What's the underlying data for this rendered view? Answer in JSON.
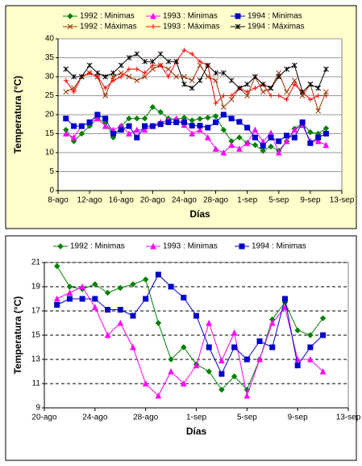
{
  "chart_data": [
    {
      "type": "line",
      "x_label": "Días",
      "y_label": "Temperatura (°C)",
      "x": [
        9,
        10,
        11,
        12,
        13,
        14,
        15,
        16,
        17,
        18,
        19,
        20,
        21,
        22,
        23,
        24,
        25,
        26,
        27,
        28,
        29,
        30,
        31,
        32,
        33,
        34,
        35,
        36,
        37,
        38,
        39,
        40,
        41,
        42
      ],
      "xlim": [
        8,
        44
      ],
      "xticks": [
        {
          "value": 8,
          "label": "8-ago"
        },
        {
          "value": 12,
          "label": "12-ago"
        },
        {
          "value": 16,
          "label": "16-ago"
        },
        {
          "value": 20,
          "label": "20-ago"
        },
        {
          "value": 24,
          "label": "24-ago"
        },
        {
          "value": 28,
          "label": "28-ago"
        },
        {
          "value": 32,
          "label": "1-sep"
        },
        {
          "value": 36,
          "label": "5-sep"
        },
        {
          "value": 40,
          "label": "9-sep"
        },
        {
          "value": 44,
          "label": "13-sep"
        }
      ],
      "ylim": [
        0,
        40
      ],
      "yticks": [
        0,
        5,
        10,
        15,
        20,
        25,
        30,
        35,
        40
      ],
      "grid": "solid",
      "background": "#ffffcc",
      "series": [
        {
          "name": "1992 : Minimas",
          "color": "#008000",
          "marker": "diamond",
          "values": [
            16,
            13,
            15,
            17,
            19,
            18,
            14,
            17,
            19,
            19,
            19,
            22,
            20.7,
            19,
            18.8,
            19.2,
            18.5,
            18.9,
            19.2,
            19.6,
            16,
            13,
            14,
            12.6,
            12,
            10.5,
            11.6,
            10.5,
            13,
            16.3,
            17.7,
            15.4,
            15,
            16.4
          ]
        },
        {
          "name": "1993 : Minimas",
          "color": "#ff00ff",
          "marker": "triangle",
          "values": [
            15,
            14,
            17,
            18,
            19,
            17,
            16,
            17,
            15,
            16,
            16,
            17,
            18,
            18.5,
            19,
            17.3,
            15,
            16,
            14,
            11,
            10,
            12,
            11,
            12.5,
            16,
            12.9,
            15.2,
            10,
            13,
            16,
            17.3,
            13,
            13,
            12
          ]
        },
        {
          "name": "1994 : Minimas",
          "color": "#0000cc",
          "marker": "square",
          "values": [
            19,
            17,
            17,
            18,
            20,
            19,
            15,
            16,
            17,
            14,
            17,
            17,
            17.5,
            18,
            18,
            18,
            17.1,
            17.1,
            16.6,
            18,
            20,
            19,
            18.1,
            16.6,
            14,
            11.8,
            14,
            13,
            14.5,
            14,
            18,
            12.5,
            14,
            15
          ]
        },
        {
          "name": "1992 : Máximas",
          "color": "#993300",
          "marker": "x",
          "values": [
            26,
            27,
            30,
            31,
            30,
            25,
            30,
            31,
            30,
            29,
            30,
            32,
            33,
            32,
            30,
            30,
            29,
            33,
            30,
            29,
            22,
            24,
            27,
            25,
            30,
            26,
            27,
            31,
            26,
            29,
            25,
            28,
            21,
            26
          ]
        },
        {
          "name": "1993 : Máximas",
          "color": "#ff0000",
          "marker": "plus",
          "values": [
            29,
            26,
            30,
            31,
            30,
            27,
            29,
            30,
            32,
            32,
            31,
            33,
            33,
            30,
            34,
            37,
            36,
            34,
            33,
            23,
            25,
            25,
            27,
            26,
            27,
            28,
            25,
            25,
            24,
            28,
            26,
            24,
            25,
            25
          ]
        },
        {
          "name": "1994 : Máximas",
          "color": "#000000",
          "marker": "star",
          "values": [
            32,
            30,
            30,
            33,
            31,
            30,
            31,
            33,
            35,
            36,
            34,
            34,
            36,
            34,
            34,
            28,
            27,
            29,
            33,
            31,
            31,
            29,
            27,
            28,
            30,
            28,
            27,
            30,
            32,
            33,
            26,
            28,
            27,
            32
          ]
        }
      ]
    },
    {
      "type": "line",
      "x_label": "Días",
      "y_label": "Temperatura (°C)",
      "x": [
        21,
        22,
        23,
        24,
        25,
        26,
        27,
        28,
        29,
        30,
        31,
        32,
        33,
        34,
        35,
        36,
        37,
        38,
        39,
        40,
        41,
        42
      ],
      "xlim": [
        20,
        44
      ],
      "xticks": [
        {
          "value": 20,
          "label": "20-ago"
        },
        {
          "value": 24,
          "label": "24-ago"
        },
        {
          "value": 28,
          "label": "28-ago"
        },
        {
          "value": 32,
          "label": "1-sep"
        },
        {
          "value": 36,
          "label": "5-sep"
        },
        {
          "value": 40,
          "label": "9-sep"
        },
        {
          "value": 44,
          "label": "13-sep"
        }
      ],
      "ylim": [
        9,
        21
      ],
      "yticks": [
        9,
        11,
        13,
        15,
        17,
        19,
        21
      ],
      "grid": "dashed",
      "background": "#ffffff",
      "series": [
        {
          "name": "1992 : Minimas",
          "color": "#008000",
          "marker": "diamond",
          "values": [
            20.7,
            19,
            18.8,
            19.2,
            18.5,
            18.9,
            19.2,
            19.6,
            16,
            13,
            14,
            12.6,
            12,
            10.5,
            11.6,
            10.5,
            13,
            16.3,
            17.7,
            15.4,
            15,
            16.4
          ]
        },
        {
          "name": "1993 : Minimas",
          "color": "#ff00ff",
          "marker": "triangle",
          "values": [
            18,
            18.5,
            19,
            17.3,
            15,
            16,
            14,
            11,
            10,
            12,
            11,
            12.5,
            16,
            12.9,
            15.2,
            10,
            13,
            16,
            17.3,
            13,
            13,
            12
          ]
        },
        {
          "name": "1994 : Minimas",
          "color": "#0000cc",
          "marker": "square",
          "values": [
            17.5,
            18,
            18,
            18,
            17.1,
            17.1,
            16.6,
            18,
            20,
            19,
            18.1,
            16.6,
            14,
            11.8,
            14,
            13,
            14.5,
            14,
            18,
            12.5,
            14,
            15
          ]
        }
      ]
    }
  ]
}
